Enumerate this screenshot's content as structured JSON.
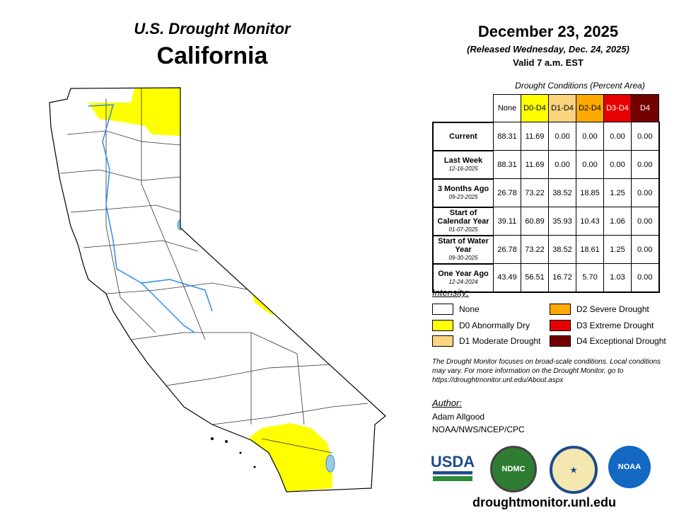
{
  "header": {
    "title": "U.S. Drought Monitor",
    "state": "California",
    "date": "December 23, 2025",
    "released": "(Released Wednesday, Dec. 24, 2025)",
    "valid": "Valid 7 a.m. EST"
  },
  "table": {
    "caption": "Drought Conditions (Percent Area)",
    "columns": [
      "None",
      "D0-D4",
      "D1-D4",
      "D2-D4",
      "D3-D4",
      "D4"
    ],
    "column_colors": [
      "#ffffff",
      "#ffff00",
      "#fcd37f",
      "#ffaa00",
      "#e60000",
      "#730000"
    ],
    "rows": [
      {
        "label": "Current",
        "date": "",
        "values": [
          "88.31",
          "11.69",
          "0.00",
          "0.00",
          "0.00",
          "0.00"
        ]
      },
      {
        "label": "Last Week",
        "date": "12-16-2025",
        "values": [
          "88.31",
          "11.69",
          "0.00",
          "0.00",
          "0.00",
          "0.00"
        ]
      },
      {
        "label": "3 Months Ago",
        "date": "09-23-2025",
        "values": [
          "26.78",
          "73.22",
          "38.52",
          "18.85",
          "1.25",
          "0.00"
        ]
      },
      {
        "label": "Start of Calendar Year",
        "date": "01-07-2025",
        "values": [
          "39.11",
          "60.89",
          "35.93",
          "10.43",
          "1.06",
          "0.00"
        ]
      },
      {
        "label": "Start of Water Year",
        "date": "09-30-2025",
        "values": [
          "26.78",
          "73.22",
          "38.52",
          "18.61",
          "1.25",
          "0.00"
        ]
      },
      {
        "label": "One Year Ago",
        "date": "12-24-2024",
        "values": [
          "43.49",
          "56.51",
          "16.72",
          "5.70",
          "1.03",
          "0.00"
        ]
      }
    ]
  },
  "legend": {
    "title": "Intensity:",
    "items": [
      {
        "label": "None",
        "color": "#ffffff"
      },
      {
        "label": "D0 Abnormally Dry",
        "color": "#ffff00"
      },
      {
        "label": "D1 Moderate Drought",
        "color": "#fcd37f"
      },
      {
        "label": "D2 Severe Drought",
        "color": "#ffaa00"
      },
      {
        "label": "D3 Extreme Drought",
        "color": "#e60000"
      },
      {
        "label": "D4 Exceptional Drought",
        "color": "#730000"
      }
    ]
  },
  "note": "The Drought Monitor focuses on broad-scale conditions. Local conditions may vary. For more information on the Drought Monitor, go to https://droughtmonitor.unl.edu/About.aspx",
  "author": {
    "title": "Author:",
    "name": "Adam Allgood",
    "org": "NOAA/NWS/NCEP/CPC"
  },
  "logos": {
    "usda": "USDA",
    "ndmc": "NDMC",
    "noaa": "NOAA"
  },
  "footer": {
    "url": "droughtmonitor.unl.edu"
  }
}
